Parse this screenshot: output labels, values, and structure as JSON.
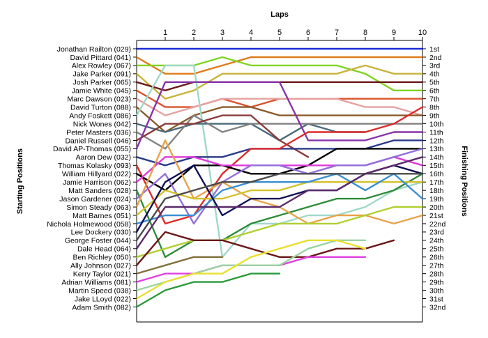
{
  "chart_data": {
    "type": "line",
    "title": "Laps",
    "ylabel": "Starting Positions",
    "y2label": "Finishing Positions",
    "x": [
      0,
      1,
      2,
      3,
      4,
      5,
      6,
      7,
      8,
      9,
      10
    ],
    "x_tick_labels": [
      "1",
      "2",
      "3",
      "4",
      "5",
      "6",
      "7",
      "8",
      "9",
      "10"
    ],
    "y_reversed": true,
    "ylim": [
      1,
      32
    ],
    "grid": false,
    "starting_order": [
      "Jonathan Railton (029)",
      "David Pittard (041)",
      "Alex Rowley (067)",
      "Jake Parker (091)",
      "Josh Parker (065)",
      "Jamie White (045)",
      "Marc Dawson (023)",
      "David Turton (088)",
      "Andy Foskett (086)",
      "Nick Wones (042)",
      "Peter Masters (036)",
      "Daniel Russell (046)",
      "David AP-Thomas (055)",
      "Aaron Dew (032)",
      "Thomas Kolasky (093)",
      "William Hillyard (022)",
      "Jamie Harrison (062)",
      "Matt Sanders (028)",
      "Jason Gardener (024)",
      "Simon Steady (063)",
      "Matt Barnes (051)",
      "Nichola Holmewood (058)",
      "Lee Dockery (030)",
      "George Foster (044)",
      "Dale Head (064)",
      "Ben Richley (050)",
      "Ally Johnson (027)",
      "Kerry Taylor (021)",
      "Adrian Williams (081)",
      "Martin Speed (038)",
      "Jake LLoyd (022)",
      "Adam Smith (082)"
    ],
    "finishing_labels": [
      "1st",
      "2nd",
      "3rd",
      "4th",
      "5th",
      "6th",
      "7th",
      "8th",
      "9th",
      "10th",
      "11th",
      "12th",
      "13th",
      "14th",
      "15th",
      "16th",
      "17th",
      "18th",
      "19th",
      "20th",
      "21st",
      "22nd",
      "23rd",
      "24th",
      "25th",
      "26th",
      "27th",
      "28th",
      "29th",
      "30th",
      "31st",
      "32nd"
    ],
    "series": [
      {
        "color": "#1a2ad6",
        "positions": [
          1,
          1,
          1,
          1,
          1,
          1,
          1,
          1,
          1,
          1,
          1
        ]
      },
      {
        "color": "#e07b1a",
        "positions": [
          2,
          4,
          4,
          3,
          2,
          2,
          2,
          2,
          2,
          2,
          2
        ]
      },
      {
        "color": "#7fd421",
        "positions": [
          3,
          3,
          3,
          2,
          3,
          3,
          3,
          3,
          4,
          6,
          6
        ]
      },
      {
        "color": "#c9b43a",
        "positions": [
          4,
          7,
          6,
          4,
          4,
          4,
          4,
          4,
          3,
          4,
          4
        ]
      },
      {
        "color": "#6b1a1a",
        "positions": [
          5,
          6,
          5,
          5,
          5,
          5,
          5,
          5,
          5,
          5,
          5
        ]
      },
      {
        "color": "#d9532a",
        "positions": [
          6,
          8,
          8,
          7,
          8,
          7,
          7,
          7,
          7,
          7,
          7
        ]
      },
      {
        "color": "#e8a0a0",
        "positions": [
          7,
          9,
          8,
          7,
          7,
          7,
          7,
          7,
          8,
          8,
          9
        ]
      },
      {
        "color": "#8a5a2a",
        "positions": [
          8,
          11,
          9,
          8,
          8,
          9,
          9,
          9,
          9,
          9,
          9
        ]
      },
      {
        "color": "#a0d8c8",
        "positions": [
          9,
          3,
          3,
          26,
          22,
          22,
          21,
          21,
          20,
          18,
          17
        ]
      },
      {
        "color": "#4a6a7a",
        "positions": [
          10,
          11,
          10,
          10,
          10,
          12,
          10,
          11,
          11,
          null,
          null
        ]
      },
      {
        "color": "#808080",
        "positions": [
          11,
          13,
          9,
          11,
          10,
          10,
          10,
          10,
          10,
          10,
          10
        ]
      },
      {
        "color": "#8a3a3a",
        "positions": [
          12,
          10,
          10,
          9,
          9,
          12,
          14,
          null,
          null,
          null,
          null
        ]
      },
      {
        "color": "#8833aa",
        "positions": [
          13,
          5,
          5,
          5,
          5,
          5,
          12,
          12,
          12,
          11,
          11
        ]
      },
      {
        "color": "#2a3a8a",
        "positions": [
          14,
          15,
          14,
          14,
          13,
          13,
          13,
          13,
          13,
          12,
          12
        ]
      },
      {
        "color": "#dd2a2a",
        "positions": [
          15,
          22,
          21,
          16,
          13,
          13,
          11,
          11,
          11,
          10,
          8
        ]
      },
      {
        "color": "#000000",
        "positions": [
          16,
          18,
          15,
          15,
          16,
          16,
          15,
          13,
          13,
          13,
          13
        ]
      },
      {
        "color": "#e03adc",
        "positions": [
          17,
          14,
          14,
          15,
          15,
          15,
          15,
          15,
          15,
          14,
          15
        ]
      },
      {
        "color": "#2e8b3a",
        "positions": [
          18,
          26,
          24,
          24,
          22,
          21,
          20,
          19,
          19,
          18,
          16
        ]
      },
      {
        "color": "#9370db",
        "positions": [
          19,
          16,
          22,
          17,
          15,
          15,
          16,
          15,
          15,
          14,
          13
        ]
      },
      {
        "color": "#e8a24a",
        "positions": [
          20,
          12,
          19,
          17,
          19,
          20,
          22,
          21,
          21,
          22,
          21
        ]
      },
      {
        "color": "#d4c22a",
        "positions": [
          21,
          18,
          19,
          19,
          18,
          18,
          17,
          17,
          17,
          17,
          17
        ]
      },
      {
        "color": "#3b8fd0",
        "positions": [
          22,
          21,
          21,
          18,
          17,
          17,
          17,
          16,
          18,
          16,
          19
        ]
      },
      {
        "color": "#101055",
        "positions": [
          23,
          17,
          15,
          21,
          19,
          19,
          18,
          18,
          16,
          15,
          16
        ]
      },
      {
        "color": "#4a4a4a",
        "positions": [
          24,
          19,
          18,
          17,
          17,
          16,
          16,
          16,
          16,
          16,
          16
        ]
      },
      {
        "color": "#5a2a6a",
        "positions": [
          25,
          20,
          20,
          20,
          20,
          20,
          18,
          18,
          16,
          15,
          14
        ]
      },
      {
        "color": "#b0d030",
        "positions": [
          26,
          25,
          24,
          24,
          23,
          22,
          22,
          22,
          21,
          20,
          20
        ]
      },
      {
        "color": "#6b1818",
        "positions": [
          27,
          23,
          24,
          24,
          25,
          26,
          26,
          25,
          25,
          24,
          null
        ]
      },
      {
        "color": "#80703a",
        "positions": [
          28,
          27,
          26,
          26,
          null,
          null,
          null,
          null,
          null,
          null,
          null
        ]
      },
      {
        "color": "#e040e0",
        "positions": [
          29,
          28,
          28,
          27,
          27,
          27,
          26,
          26,
          26,
          null,
          null
        ]
      },
      {
        "color": "#9ad4a0",
        "positions": [
          30,
          29,
          28,
          27,
          27,
          27,
          25,
          24,
          24,
          null,
          null
        ]
      },
      {
        "color": "#e8e030",
        "positions": [
          31,
          29,
          28,
          28,
          26,
          25,
          24,
          24,
          25,
          null,
          null
        ]
      },
      {
        "color": "#2a9a3a",
        "positions": [
          32,
          30,
          29,
          29,
          28,
          28,
          null,
          null,
          null,
          null,
          null
        ]
      }
    ]
  }
}
